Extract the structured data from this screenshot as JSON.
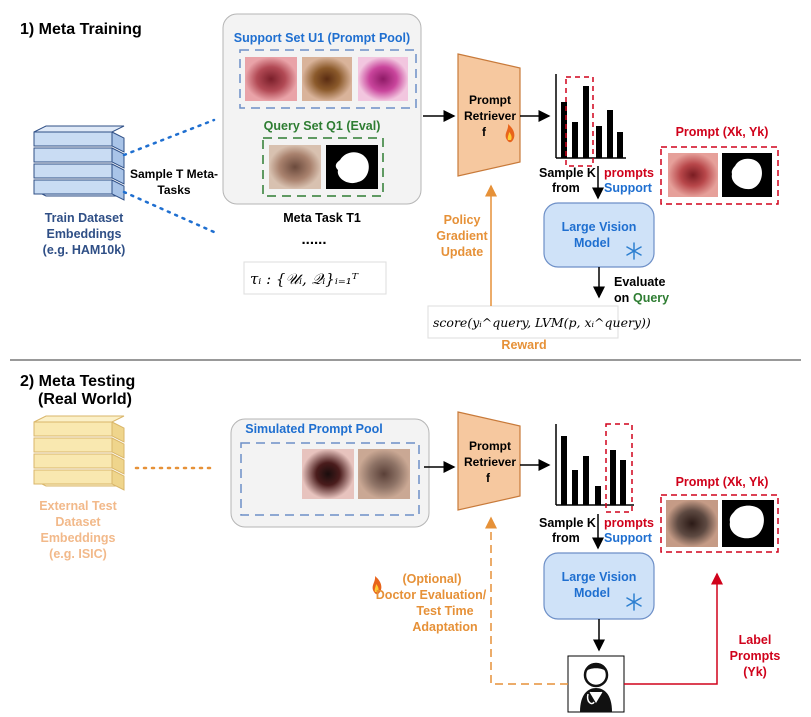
{
  "colors": {
    "blue": "#1f6fd0",
    "green": "#2e7d32",
    "red": "#d0021b",
    "orange": "#e69138",
    "navy": "#2f4f86",
    "peach": "#f6c89f",
    "lightblue": "#cfe2f8",
    "black": "#000000"
  },
  "training": {
    "section_title": "1) Meta Training",
    "dataset_label": [
      "Train Dataset",
      "Embeddings",
      "(e.g. HAM10k)"
    ],
    "sample_tasks_label": [
      "Sample T Meta-",
      "Tasks"
    ],
    "support_set_label": "Support Set U1 (Prompt Pool)",
    "query_set_label": "Query Set Q1 (Eval)",
    "meta_task_label": "Meta Task T1",
    "ellipsis": "......",
    "task_formula": "τᵢ : {𝒰ᵢ, 𝒬ᵢ}ᵢ₌₁ᵀ",
    "retriever_label": [
      "Prompt",
      "Retriever",
      "f"
    ],
    "sample_k_line1": "Sample K",
    "sample_k_prompts": "prompts",
    "sample_k_from": "from",
    "sample_k_support": "Support",
    "prompt_label": "Prompt (Xk, Yk)",
    "lvm_label": [
      "Large Vision",
      "Model"
    ],
    "evaluate_label": [
      "Evaluate",
      "on"
    ],
    "query_word": "Query",
    "policy_label": [
      "Policy",
      "Gradient",
      "Update"
    ],
    "score_formula": "score(yᵢ^query, LVM(p, xᵢ^query))",
    "reward_label": "Reward"
  },
  "testing": {
    "section_title": [
      "2) Meta Testing",
      "(Real World)"
    ],
    "dataset_label": [
      "External Test",
      "Dataset",
      "Embeddings",
      "(e.g. ISIC)"
    ],
    "pool_label": "Simulated Prompt Pool",
    "retriever_label": [
      "Prompt",
      "Retriever",
      "f"
    ],
    "sample_k_line1": "Sample K",
    "sample_k_prompts": "prompts",
    "sample_k_from": "from",
    "sample_k_support": "Support",
    "prompt_label": "Prompt (Xk, Yk)",
    "lvm_label": [
      "Large Vision",
      "Model"
    ],
    "doctor_label": [
      "(Optional)",
      "Doctor Evaluation/",
      "Test Time",
      "Adaptation"
    ],
    "label_prompts_label": [
      "Label",
      "Prompts",
      "(Yk)"
    ]
  },
  "icons": [
    "fire-icon",
    "snowflake-icon",
    "doctor-icon"
  ]
}
